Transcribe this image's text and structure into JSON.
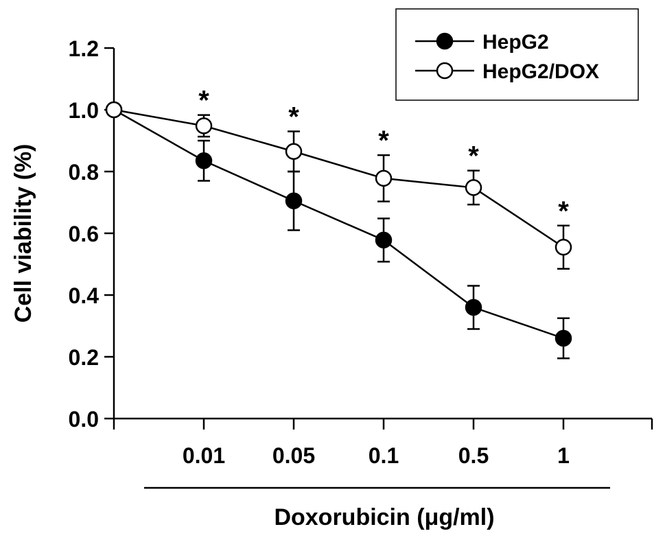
{
  "chart_data": {
    "type": "line",
    "x": [
      "0",
      "0.01",
      "0.05",
      "0.1",
      "0.5",
      "1"
    ],
    "x_tick_labels": [
      "0.01",
      "0.05",
      "0.1",
      "0.5",
      "1"
    ],
    "ylabel": "Cell viability (%)",
    "xlabel": "Doxorubicin (μg/ml)",
    "ylim": [
      0,
      1.2
    ],
    "y_ticks": [
      "0.0",
      "0.2",
      "0.4",
      "0.6",
      "0.8",
      "1.0",
      "1.2"
    ],
    "grid": false,
    "legend_position": "top-right",
    "series": [
      {
        "name": "HepG2",
        "marker": "filled-circle",
        "values": [
          1.0,
          0.835,
          0.705,
          0.578,
          0.36,
          0.26
        ],
        "errors": [
          0,
          0.065,
          0.095,
          0.07,
          0.07,
          0.065
        ]
      },
      {
        "name": "HepG2/DOX",
        "marker": "open-circle",
        "values": [
          1.0,
          0.948,
          0.865,
          0.778,
          0.748,
          0.555
        ],
        "errors": [
          0,
          0.035,
          0.065,
          0.075,
          0.055,
          0.07
        ]
      }
    ],
    "annotations": [
      {
        "text": "*",
        "x": "0.01",
        "series": "HepG2/DOX"
      },
      {
        "text": "*",
        "x": "0.05",
        "series": "HepG2/DOX"
      },
      {
        "text": "*",
        "x": "0.1",
        "series": "HepG2/DOX"
      },
      {
        "text": "*",
        "x": "0.5",
        "series": "HepG2/DOX"
      },
      {
        "text": "*",
        "x": "1",
        "series": "HepG2/DOX"
      }
    ],
    "colors": {
      "line": "#000000",
      "filled_marker": "#000000",
      "open_marker_fill": "#ffffff"
    }
  }
}
